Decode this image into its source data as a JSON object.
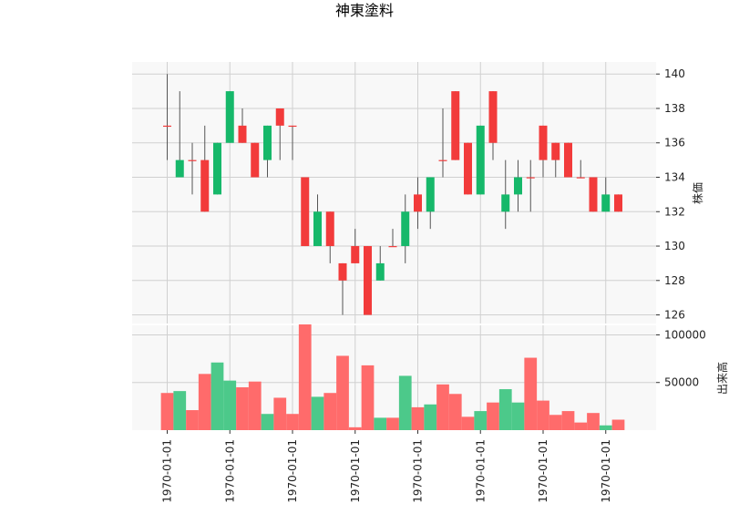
{
  "chart_data": {
    "type": "candlestick",
    "title": "神東塗料",
    "price_axis_label": "株価",
    "volume_axis_label": "出来高",
    "price_ylim": [
      125.5,
      140.7
    ],
    "price_ticks": [
      "126",
      "128",
      "130",
      "132",
      "134",
      "136",
      "138",
      "140"
    ],
    "volume_ylim": [
      0,
      110000
    ],
    "volume_ticks": [
      "50000",
      "100000"
    ],
    "x_tick_labels": [
      "1970-01-01",
      "1970-01-01",
      "1970-01-01",
      "1970-01-01",
      "1970-01-01",
      "1970-01-01",
      "1970-01-01",
      "1970-01-01"
    ],
    "grid": true,
    "colors": {
      "up": "#16b86a",
      "down": "#f23b3b",
      "up_volume": "#4cc98a",
      "down_volume": "#ff6b6b"
    },
    "candles": [
      {
        "o": 137,
        "h": 140,
        "l": 135,
        "c": 137,
        "v": 39000
      },
      {
        "o": 134,
        "h": 139,
        "l": 134,
        "c": 135,
        "v": 41000
      },
      {
        "o": 135,
        "h": 136,
        "l": 133,
        "c": 135,
        "v": 21000
      },
      {
        "o": 135,
        "h": 137,
        "l": 132,
        "c": 132,
        "v": 59000
      },
      {
        "o": 133,
        "h": 136,
        "l": 133,
        "c": 136,
        "v": 71000
      },
      {
        "o": 136,
        "h": 139,
        "l": 136,
        "c": 139,
        "v": 52000
      },
      {
        "o": 137,
        "h": 138,
        "l": 136,
        "c": 136,
        "v": 45000
      },
      {
        "o": 136,
        "h": 136,
        "l": 134,
        "c": 134,
        "v": 51000
      },
      {
        "o": 135,
        "h": 137,
        "l": 134,
        "c": 137,
        "v": 17000
      },
      {
        "o": 138,
        "h": 138,
        "l": 135,
        "c": 137,
        "v": 34000
      },
      {
        "o": 137,
        "h": 137,
        "l": 135,
        "c": 137,
        "v": 17000
      },
      {
        "o": 134,
        "h": 134,
        "l": 130,
        "c": 130,
        "v": 111000
      },
      {
        "o": 130,
        "h": 133,
        "l": 130,
        "c": 132,
        "v": 35000
      },
      {
        "o": 132,
        "h": 132,
        "l": 129,
        "c": 130,
        "v": 39000
      },
      {
        "o": 129,
        "h": 129,
        "l": 126,
        "c": 128,
        "v": 78000
      },
      {
        "o": 130,
        "h": 131,
        "l": 129,
        "c": 129,
        "v": 3000
      },
      {
        "o": 130,
        "h": 130,
        "l": 126,
        "c": 126,
        "v": 68000
      },
      {
        "o": 128,
        "h": 130,
        "l": 128,
        "c": 129,
        "v": 13000
      },
      {
        "o": 130,
        "h": 131,
        "l": 130,
        "c": 130,
        "v": 13000
      },
      {
        "o": 130,
        "h": 133,
        "l": 129,
        "c": 132,
        "v": 57000
      },
      {
        "o": 133,
        "h": 134,
        "l": 131,
        "c": 132,
        "v": 24000
      },
      {
        "o": 132,
        "h": 134,
        "l": 131,
        "c": 134,
        "v": 27000
      },
      {
        "o": 135,
        "h": 138,
        "l": 134,
        "c": 135,
        "v": 48000
      },
      {
        "o": 139,
        "h": 139,
        "l": 135,
        "c": 135,
        "v": 38000
      },
      {
        "o": 136,
        "h": 136,
        "l": 133,
        "c": 133,
        "v": 14000
      },
      {
        "o": 133,
        "h": 137,
        "l": 133,
        "c": 137,
        "v": 20000
      },
      {
        "o": 139,
        "h": 139,
        "l": 135,
        "c": 136,
        "v": 29000
      },
      {
        "o": 132,
        "h": 135,
        "l": 131,
        "c": 133,
        "v": 43000
      },
      {
        "o": 133,
        "h": 135,
        "l": 132,
        "c": 134,
        "v": 29000
      },
      {
        "o": 134,
        "h": 135,
        "l": 132,
        "c": 134,
        "v": 76000
      },
      {
        "o": 137,
        "h": 137,
        "l": 134,
        "c": 135,
        "v": 31000
      },
      {
        "o": 136,
        "h": 136,
        "l": 134,
        "c": 135,
        "v": 16000
      },
      {
        "o": 136,
        "h": 136,
        "l": 134,
        "c": 134,
        "v": 20000
      },
      {
        "o": 134,
        "h": 135,
        "l": 134,
        "c": 134,
        "v": 8000
      },
      {
        "o": 134,
        "h": 134,
        "l": 132,
        "c": 132,
        "v": 18000
      },
      {
        "o": 132,
        "h": 134,
        "l": 132,
        "c": 133,
        "v": 5000
      },
      {
        "o": 133,
        "h": 133,
        "l": 132,
        "c": 132,
        "v": 11000
      }
    ]
  }
}
